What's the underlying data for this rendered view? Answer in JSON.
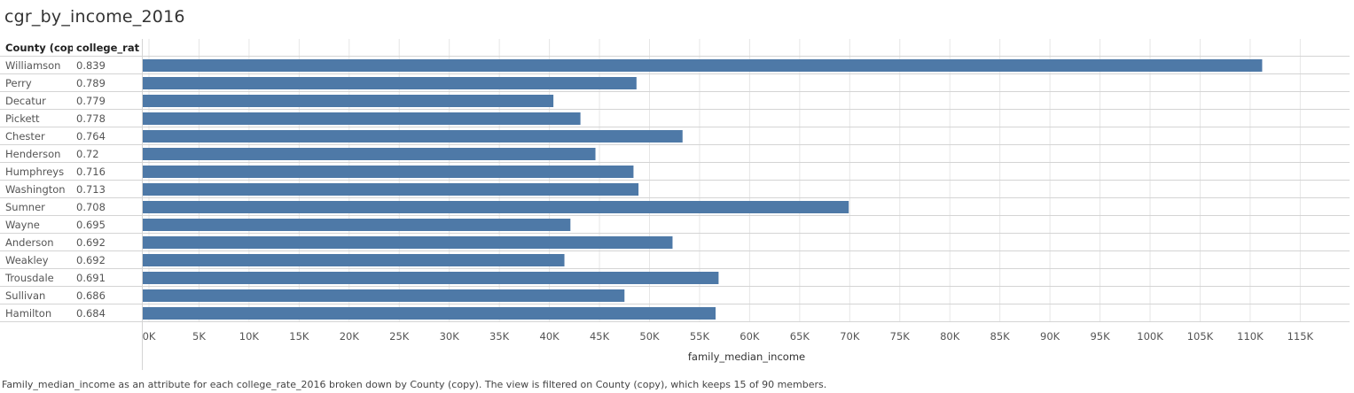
{
  "title": "cgr_by_income_2016",
  "headers": {
    "county": "County (cop..",
    "rate": "college_rat.."
  },
  "footer": "Family_median_income as an attribute for each college_rate_2016 broken down by County (copy). The view is filtered on County (copy), which keeps 15 of 90 members.",
  "colors": {
    "bar": "#4e79a7",
    "grid": "#e6e6e6",
    "row_line": "#d4d4d4"
  },
  "chart_data": {
    "type": "bar",
    "orientation": "horizontal",
    "xlabel": "family_median_income",
    "xlim": [
      0,
      115000
    ],
    "x_ticks": [
      "0K",
      "5K",
      "10K",
      "15K",
      "20K",
      "25K",
      "30K",
      "35K",
      "40K",
      "45K",
      "50K",
      "55K",
      "60K",
      "65K",
      "70K",
      "75K",
      "80K",
      "85K",
      "90K",
      "95K",
      "100K",
      "105K",
      "110K",
      "115K"
    ],
    "x_tick_values": [
      0,
      5000,
      10000,
      15000,
      20000,
      25000,
      30000,
      35000,
      40000,
      45000,
      50000,
      55000,
      60000,
      65000,
      70000,
      75000,
      80000,
      85000,
      90000,
      95000,
      100000,
      105000,
      110000,
      115000
    ],
    "rows": [
      {
        "county": "Williamson",
        "college_rate": "0.839",
        "value": 111200
      },
      {
        "county": "Perry",
        "college_rate": "0.789",
        "value": 48700
      },
      {
        "county": "Decatur",
        "college_rate": "0.779",
        "value": 40400
      },
      {
        "county": "Pickett",
        "college_rate": "0.778",
        "value": 43100
      },
      {
        "county": "Chester",
        "college_rate": "0.764",
        "value": 53300
      },
      {
        "county": "Henderson",
        "college_rate": "0.72",
        "value": 44600
      },
      {
        "county": "Humphreys",
        "college_rate": "0.716",
        "value": 48400
      },
      {
        "county": "Washington",
        "college_rate": "0.713",
        "value": 48900
      },
      {
        "county": "Sumner",
        "college_rate": "0.708",
        "value": 69900
      },
      {
        "county": "Wayne",
        "college_rate": "0.695",
        "value": 42100
      },
      {
        "county": "Anderson",
        "college_rate": "0.692",
        "value": 52300
      },
      {
        "county": "Weakley",
        "college_rate": "0.692",
        "value": 41500
      },
      {
        "county": "Trousdale",
        "college_rate": "0.691",
        "value": 56900
      },
      {
        "county": "Sullivan",
        "college_rate": "0.686",
        "value": 47500
      },
      {
        "county": "Hamilton",
        "college_rate": "0.684",
        "value": 56600
      }
    ]
  }
}
